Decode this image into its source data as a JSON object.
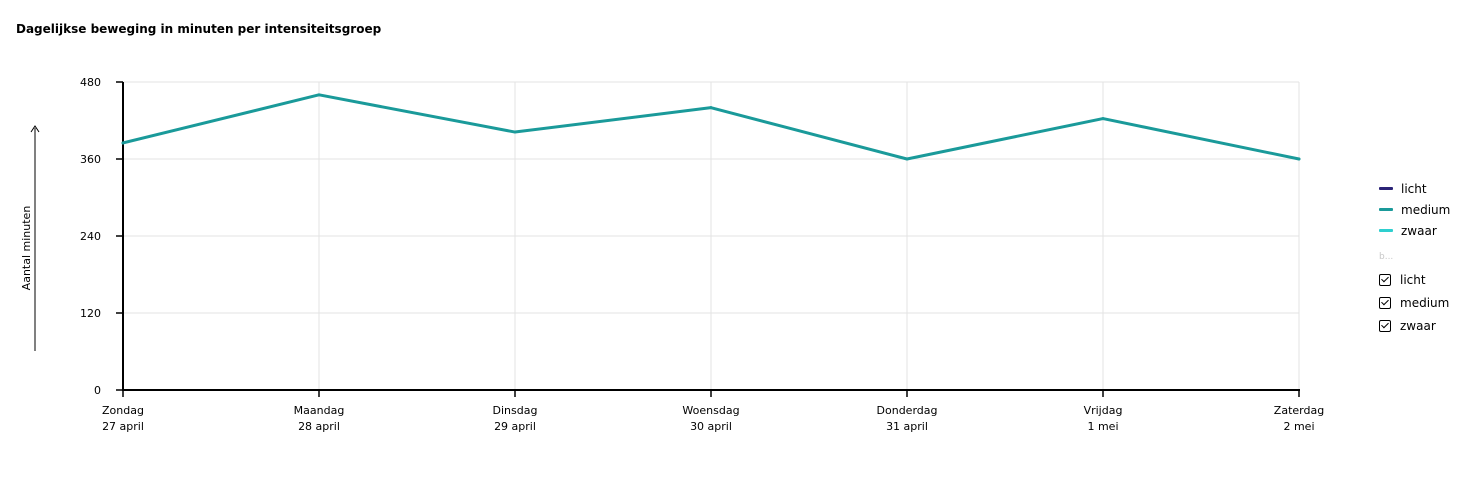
{
  "title": "Dagelijkse beweging in minuten per intensiteitsgroep",
  "legend": {
    "items": [
      {
        "label": "licht",
        "color": "#2b2377"
      },
      {
        "label": "medium",
        "color": "#1a9a9a"
      },
      {
        "label": "zwaar",
        "color": "#2ecfcf"
      }
    ],
    "filter_title": "b...",
    "filters": [
      {
        "label": "licht",
        "checked": true
      },
      {
        "label": "medium",
        "checked": true
      },
      {
        "label": "zwaar",
        "checked": true
      }
    ]
  },
  "chart_data": {
    "type": "line",
    "title": "Dagelijkse beweging in minuten per intensiteitsgroep",
    "xlabel": "",
    "ylabel": "Aantal minuten",
    "ylim": [
      0,
      480
    ],
    "yticks": [
      0,
      120,
      240,
      360,
      480
    ],
    "grid": true,
    "legend_position": "right",
    "categories": [
      [
        "Zondag",
        "27 april"
      ],
      [
        "Maandag",
        "28 april"
      ],
      [
        "Dinsdag",
        "29 april"
      ],
      [
        "Woensdag",
        "30 april"
      ],
      [
        "Donderdag",
        "31 april"
      ],
      [
        "Vrijdag",
        "1 mei"
      ],
      [
        "Zaterdag",
        "2 mei"
      ]
    ],
    "series": [
      {
        "name": "medium",
        "color": "#1a9a9a",
        "values": [
          385,
          460,
          402,
          440,
          360,
          423,
          360
        ]
      }
    ]
  }
}
